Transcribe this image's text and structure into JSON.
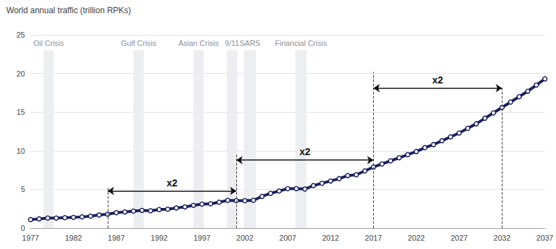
{
  "chart_data": {
    "type": "line",
    "title": "World annual traffic (trillion RPKs)",
    "x": [
      1977,
      1978,
      1979,
      1980,
      1981,
      1982,
      1983,
      1984,
      1985,
      1986,
      1987,
      1988,
      1989,
      1990,
      1991,
      1992,
      1993,
      1994,
      1995,
      1996,
      1997,
      1998,
      1999,
      2000,
      2001,
      2002,
      2003,
      2004,
      2005,
      2006,
      2007,
      2008,
      2009,
      2010,
      2011,
      2012,
      2013,
      2014,
      2015,
      2016,
      2017,
      2018,
      2019,
      2020,
      2021,
      2022,
      2023,
      2024,
      2025,
      2026,
      2027,
      2028,
      2029,
      2030,
      2031,
      2032,
      2033,
      2034,
      2035,
      2036,
      2037
    ],
    "values": [
      1.1,
      1.2,
      1.3,
      1.3,
      1.35,
      1.4,
      1.45,
      1.55,
      1.7,
      1.8,
      2.0,
      2.1,
      2.2,
      2.3,
      2.25,
      2.4,
      2.45,
      2.6,
      2.75,
      2.95,
      3.1,
      3.15,
      3.35,
      3.6,
      3.55,
      3.55,
      3.6,
      4.1,
      4.5,
      4.8,
      5.1,
      5.1,
      5.05,
      5.5,
      5.8,
      6.1,
      6.4,
      6.8,
      6.9,
      7.4,
      7.9,
      8.3,
      8.7,
      9.1,
      9.5,
      9.9,
      10.4,
      10.8,
      11.3,
      11.8,
      12.3,
      12.9,
      13.5,
      14.2,
      14.9,
      15.6,
      16.3,
      17.0,
      17.7,
      18.5,
      19.3
    ],
    "color": "#1b1f5e",
    "marker": "circle",
    "xlim": [
      1977,
      2037
    ],
    "xticks": [
      1977,
      1982,
      1987,
      1992,
      1997,
      2002,
      2007,
      2012,
      2017,
      2022,
      2027,
      2032,
      2037
    ],
    "ylim": [
      0,
      25
    ],
    "yticks": [
      0,
      5,
      10,
      15,
      20,
      25
    ],
    "grid": true,
    "bands": [
      {
        "label": "Oil Crisis",
        "x_from": 1978.5,
        "x_to": 1979.7,
        "y_to": 23
      },
      {
        "label": "Gulf Crisis",
        "x_from": 1989.0,
        "x_to": 1990.2,
        "y_to": 23
      },
      {
        "label": "Asian Crisis",
        "x_from": 1996.0,
        "x_to": 1997.2,
        "y_to": 23
      },
      {
        "label": "9/11",
        "x_from": 1999.9,
        "x_to": 2001.1,
        "y_to": 23
      },
      {
        "label": "SARS",
        "x_from": 2001.9,
        "x_to": 2003.3,
        "y_to": 23
      },
      {
        "label": "Financial Crisis",
        "x_from": 2007.9,
        "x_to": 2009.2,
        "y_to": 23
      }
    ],
    "arrows": [
      {
        "label": "x2",
        "x_from": 1986,
        "x_to": 2001,
        "y": 4.8
      },
      {
        "label": "x2",
        "x_from": 2001,
        "x_to": 2017,
        "y": 8.8
      },
      {
        "label": "x2",
        "x_from": 2017,
        "x_to": 2032,
        "y": 18.1
      }
    ],
    "guides": [
      {
        "x": 1986,
        "y_to": 5.4
      },
      {
        "x": 2001,
        "y_to": 9.5
      },
      {
        "x": 2017,
        "y_to": 20.2
      },
      {
        "x": 2032,
        "y_to": 18.3
      }
    ]
  }
}
